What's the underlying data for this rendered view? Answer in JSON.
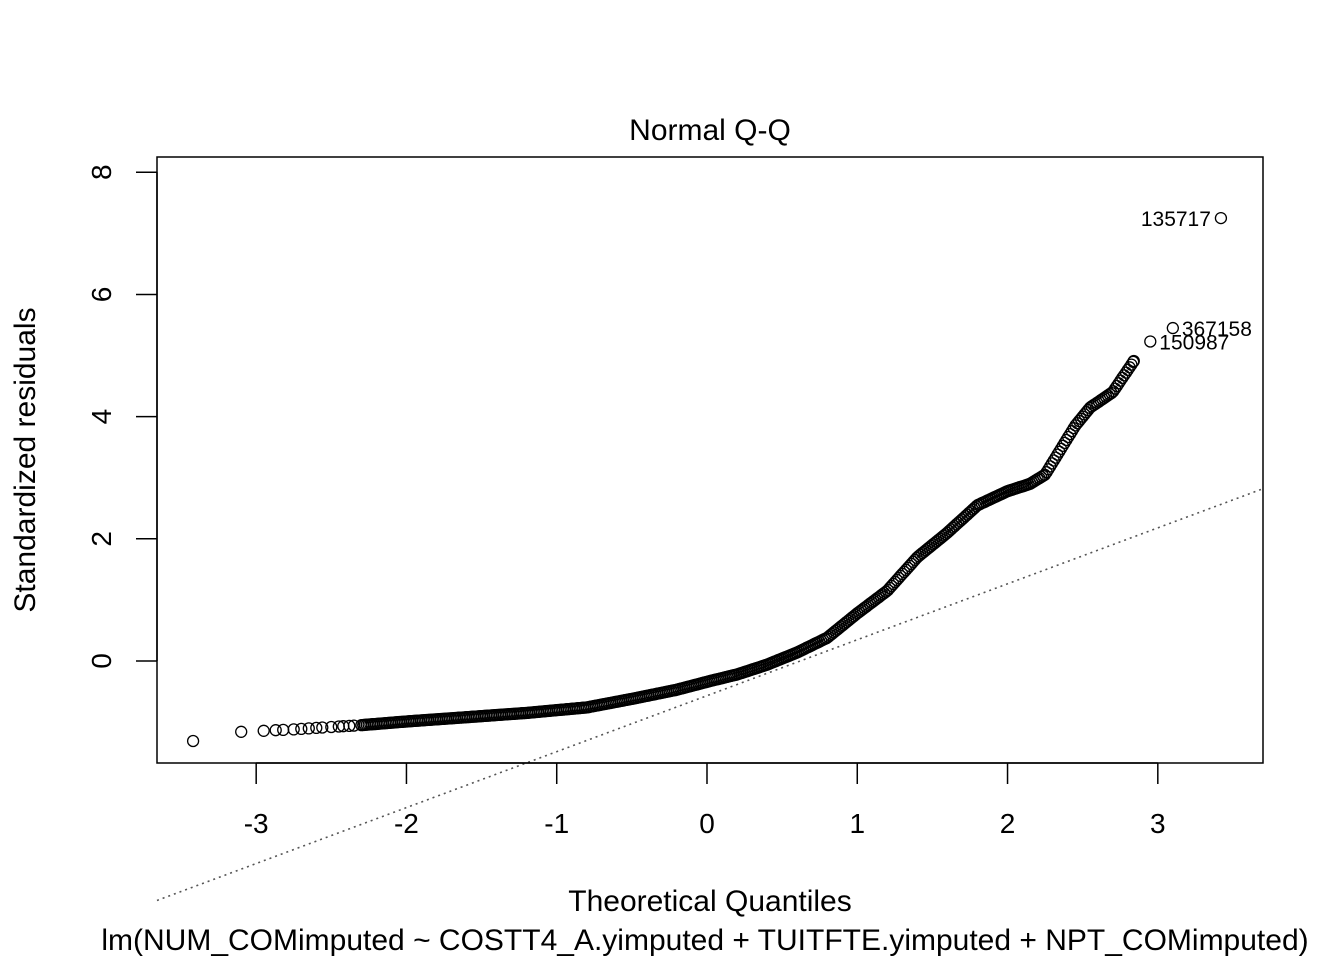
{
  "chart_data": {
    "type": "scatter",
    "title": "Normal Q-Q",
    "xlabel": "Theoretical Quantiles",
    "ylabel": "Standardized residuals",
    "subtitle": "lm(NUM_COMimputed ~ COSTT4_A.yimputed + TUITFTE.yimputed + NPT_COMimputed)",
    "xlim": [
      -3.66,
      3.7
    ],
    "ylim": [
      -1.67,
      8.25
    ],
    "xticks": [
      -3,
      -2,
      -1,
      0,
      1,
      2,
      3
    ],
    "yticks": [
      0,
      2,
      4,
      6,
      8
    ],
    "grid": false,
    "reference_line": {
      "style": "dotted",
      "color": "#555555",
      "points": [
        [
          -3.66,
          -3.92
        ],
        [
          3.7,
          2.82
        ]
      ]
    },
    "anchors": [
      [
        -3.42,
        -1.31
      ],
      [
        -3.1,
        -1.16
      ],
      [
        -2.75,
        -1.12
      ],
      [
        -2.5,
        -1.08
      ],
      [
        -2.3,
        -1.05
      ],
      [
        -2.0,
        -0.99
      ],
      [
        -1.6,
        -0.92
      ],
      [
        -1.2,
        -0.85
      ],
      [
        -0.8,
        -0.76
      ],
      [
        -0.5,
        -0.62
      ],
      [
        -0.2,
        -0.47
      ],
      [
        0.0,
        -0.34
      ],
      [
        0.2,
        -0.22
      ],
      [
        0.4,
        -0.06
      ],
      [
        0.6,
        0.14
      ],
      [
        0.8,
        0.38
      ],
      [
        1.0,
        0.78
      ],
      [
        1.2,
        1.15
      ],
      [
        1.4,
        1.7
      ],
      [
        1.6,
        2.1
      ],
      [
        1.8,
        2.55
      ],
      [
        2.0,
        2.78
      ],
      [
        2.15,
        2.9
      ],
      [
        2.25,
        3.05
      ],
      [
        2.35,
        3.45
      ],
      [
        2.45,
        3.85
      ],
      [
        2.55,
        4.15
      ],
      [
        2.7,
        4.4
      ],
      [
        2.84,
        4.91
      ]
    ],
    "outliers": [
      {
        "x": 2.95,
        "y": 5.23,
        "label": "150987"
      },
      {
        "x": 3.1,
        "y": 5.45,
        "label": "367158"
      },
      {
        "x": 3.42,
        "y": 7.25,
        "label": "135717"
      }
    ]
  }
}
